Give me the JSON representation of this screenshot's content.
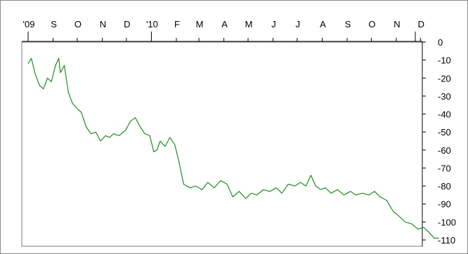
{
  "chart_data": {
    "type": "line",
    "title": "",
    "xlabel": "",
    "ylabel": "",
    "x_tick_labels": [
      "'09",
      "S",
      "O",
      "N",
      "D",
      "'10",
      "F",
      "M",
      "A",
      "M",
      "J",
      "J",
      "A",
      "S",
      "O",
      "N",
      "D"
    ],
    "x_tick_dates": [
      "2009-08",
      "2009-09",
      "2009-10",
      "2009-11",
      "2009-12",
      "2010-01",
      "2010-02",
      "2010-03",
      "2010-04",
      "2010-05",
      "2010-06",
      "2010-07",
      "2010-08",
      "2010-09",
      "2010-10",
      "2010-11",
      "2010-12"
    ],
    "y_ticks": [
      0,
      -10,
      -20,
      -30,
      -40,
      -50,
      -60,
      -70,
      -80,
      -90,
      -100,
      -110
    ],
    "ylim": [
      -110,
      0
    ],
    "grid": false,
    "series": [
      {
        "color": "#1e8c1e",
        "x": [
          "2009-08-01",
          "2009-08-05",
          "2009-08-10",
          "2009-08-15",
          "2009-08-20",
          "2009-08-25",
          "2009-08-30",
          "2009-09-04",
          "2009-09-08",
          "2009-09-10",
          "2009-09-15",
          "2009-09-20",
          "2009-09-25",
          "2009-10-01",
          "2009-10-06",
          "2009-10-12",
          "2009-10-18",
          "2009-10-24",
          "2009-10-30",
          "2009-11-05",
          "2009-11-10",
          "2009-11-15",
          "2009-11-22",
          "2009-11-30",
          "2009-12-06",
          "2009-12-12",
          "2009-12-18",
          "2009-12-24",
          "2009-12-30",
          "2010-01-04",
          "2010-01-08",
          "2010-01-12",
          "2010-01-18",
          "2010-01-24",
          "2010-01-30",
          "2010-02-04",
          "2010-02-10",
          "2010-02-18",
          "2010-02-25",
          "2010-03-05",
          "2010-03-12",
          "2010-03-20",
          "2010-03-28",
          "2010-04-05",
          "2010-04-12",
          "2010-04-20",
          "2010-04-28",
          "2010-05-05",
          "2010-05-12",
          "2010-05-20",
          "2010-05-28",
          "2010-06-05",
          "2010-06-12",
          "2010-06-20",
          "2010-06-28",
          "2010-07-05",
          "2010-07-12",
          "2010-07-18",
          "2010-07-24",
          "2010-07-30",
          "2010-08-05",
          "2010-08-12",
          "2010-08-20",
          "2010-08-28",
          "2010-09-05",
          "2010-09-12",
          "2010-09-20",
          "2010-09-28",
          "2010-10-05",
          "2010-10-12",
          "2010-10-20",
          "2010-10-28",
          "2010-11-05",
          "2010-11-12",
          "2010-11-20",
          "2010-11-28",
          "2010-12-05",
          "2010-12-12",
          "2010-12-18",
          "2010-12-24"
        ],
        "y": [
          -12,
          -9,
          -18,
          -24,
          -26,
          -20,
          -22,
          -13,
          -9,
          -17,
          -13,
          -28,
          -34,
          -37,
          -39,
          -47,
          -51,
          -50,
          -55,
          -52,
          -53,
          -51,
          -52,
          -49,
          -44,
          -42,
          -47,
          -51,
          -52,
          -61,
          -60,
          -55,
          -58,
          -53,
          -57,
          -66,
          -79,
          -81,
          -80,
          -82,
          -78,
          -81,
          -77,
          -79,
          -86,
          -83,
          -87,
          -84,
          -85,
          -82,
          -83,
          -81,
          -84,
          -79,
          -80,
          -78,
          -80,
          -74,
          -80,
          -82,
          -81,
          -84,
          -82,
          -85,
          -83,
          -85,
          -84,
          -85,
          -83,
          -86,
          -88,
          -94,
          -97,
          -100,
          -101,
          -104,
          -103,
          -106,
          -109,
          -109
        ]
      }
    ]
  }
}
